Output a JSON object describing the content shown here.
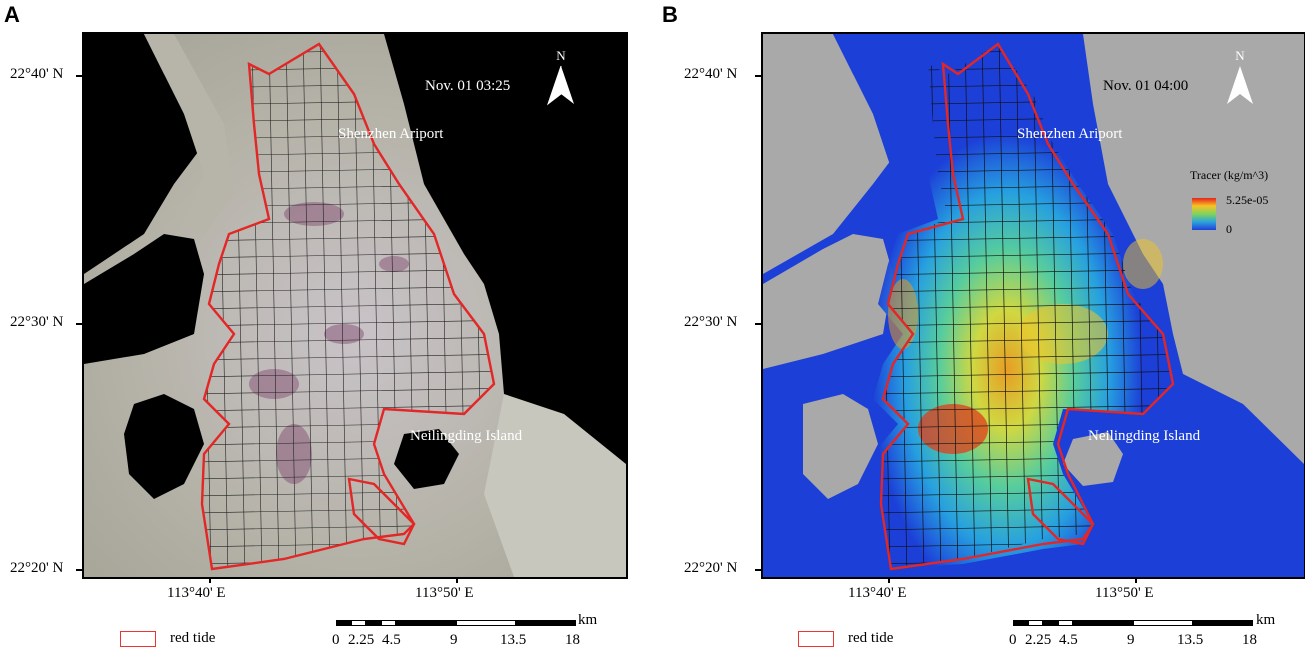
{
  "panels": [
    {
      "letter": "A",
      "time": "Nov. 01 03:25",
      "airport": "Shenzhen Ariport",
      "island": "Neilingding Island",
      "north": "N",
      "lat_labels": [
        "22°40' N",
        "22°30' N",
        "22°20' N"
      ],
      "lon_labels": [
        "113°40' E",
        "113°50' E"
      ],
      "legend": "red tide",
      "scale_unit": "km",
      "scale_ticks": [
        "0",
        "2.25",
        "4.5",
        "9",
        "13.5",
        "18"
      ]
    },
    {
      "letter": "B",
      "time": "Nov. 01 04:00",
      "airport": "Shenzhen Ariport",
      "island": "Neilingding Island",
      "north": "N",
      "lat_labels": [
        "22°40' N",
        "22°30' N",
        "22°20' N"
      ],
      "lon_labels": [
        "113°40' E",
        "113°50' E"
      ],
      "legend": "red tide",
      "scale_unit": "km",
      "scale_ticks": [
        "0",
        "2.25",
        "4.5",
        "9",
        "13.5",
        "18"
      ],
      "colorbar": {
        "title": "Tracer (kg/m^3)",
        "max": "5.25e-05",
        "min": "0"
      }
    }
  ],
  "colors": {
    "outline": "#e32626",
    "land_A": "#000000",
    "water_A": "#b9b8ad",
    "land_B": "#a9a9a9",
    "water_B": "#1c3fd8"
  }
}
